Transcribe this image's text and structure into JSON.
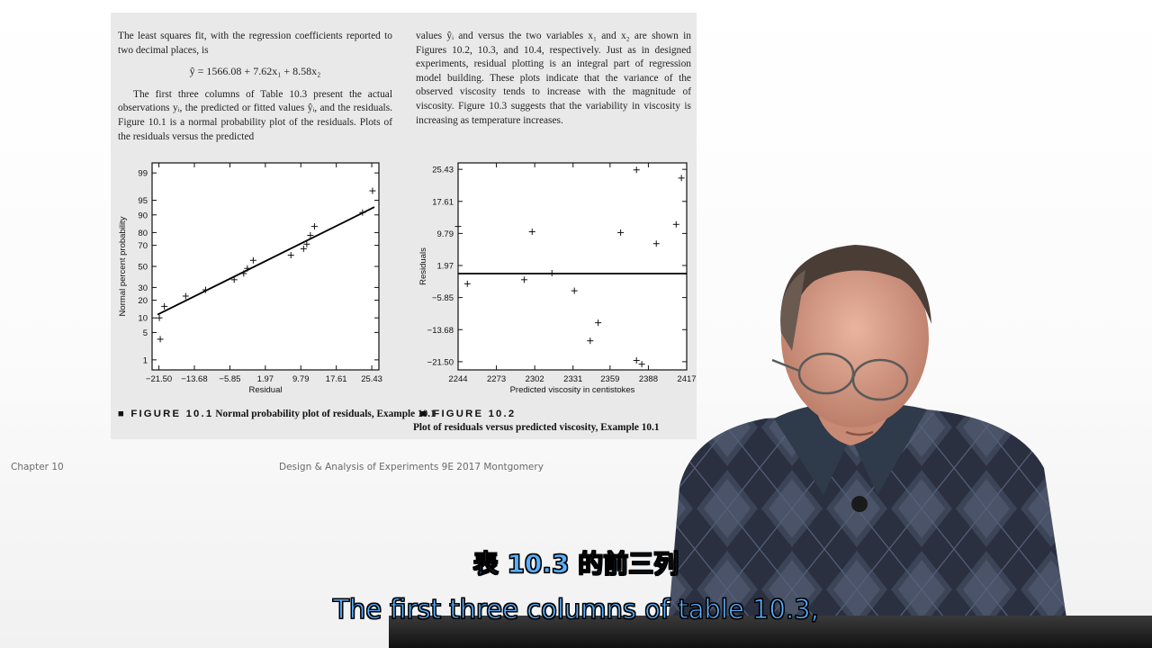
{
  "slide": {
    "left_column": {
      "para1": "The least squares fit, with the regression coefficients reported to two decimal places, is",
      "equation": "ŷ = 1566.08 + 7.62x₁ + 8.58x₂",
      "para2": "The first three columns of Table 10.3 present the actual observations yᵢ, the predicted or fitted values ŷᵢ, and the residuals. Figure 10.1 is a normal probability plot of the residuals. Plots of the residuals versus the predicted"
    },
    "right_column": {
      "para1": "values ŷᵢ and versus the two variables x₁ and x₂ are shown in Figures 10.2, 10.3, and 10.4, respectively. Just as in designed experiments, residual plotting is an integral part of regression model building. These plots indicate that the variance of the observed viscosity tends to increase with the magnitude of viscosity. Figure 10.3 suggests that the variability in viscosity is increasing as temperature increases."
    },
    "figure1": {
      "label": "■ FIGURE 10.1",
      "caption": "Normal probability plot of residuals, Example 10.1"
    },
    "figure2": {
      "label": "■ FIGURE 10.2",
      "caption": "Plot of residuals versus predicted viscosity, Example 10.1"
    }
  },
  "chart_data": [
    {
      "type": "scatter",
      "xlabel": "Residual",
      "ylabel": "Normal percent probability",
      "x_ticks": [
        "−21.50",
        "−13.68",
        "−5.85",
        "1.97",
        "9.79",
        "17.61",
        "25.43"
      ],
      "y_ticks": [
        "1",
        "5",
        "10",
        "20",
        "30",
        "50",
        "70",
        "80",
        "90",
        "95",
        "99"
      ],
      "xlim": [
        -23,
        27
      ],
      "y_scale": "normal-probability",
      "marker": "+",
      "points": [
        {
          "x": -21.2,
          "y": 3.5
        },
        {
          "x": -21.4,
          "y": 10
        },
        {
          "x": -20.3,
          "y": 16
        },
        {
          "x": -15.6,
          "y": 23
        },
        {
          "x": -11.2,
          "y": 28
        },
        {
          "x": -4.9,
          "y": 37
        },
        {
          "x": -2.8,
          "y": 43
        },
        {
          "x": -2.0,
          "y": 48
        },
        {
          "x": -0.7,
          "y": 56
        },
        {
          "x": 7.6,
          "y": 61
        },
        {
          "x": 10.4,
          "y": 67
        },
        {
          "x": 11.1,
          "y": 71
        },
        {
          "x": 11.9,
          "y": 78
        },
        {
          "x": 12.8,
          "y": 84
        },
        {
          "x": 23.4,
          "y": 91
        },
        {
          "x": 25.6,
          "y": 97
        }
      ],
      "fit_line": [
        {
          "x": -21.8,
          "y": 11.5
        },
        {
          "x": 26.0,
          "y": 93
        }
      ]
    },
    {
      "type": "scatter",
      "xlabel": "Predicted viscosity in centistokes",
      "ylabel": "Residuals",
      "x_ticks": [
        "2244",
        "2273",
        "2302",
        "2331",
        "2359",
        "2388",
        "2417"
      ],
      "y_ticks": [
        "25.43",
        "17.61",
        "9.79",
        "1.97",
        "−5.85",
        "−13.68",
        "−21.50"
      ],
      "xlim": [
        2244,
        2417
      ],
      "ylim": [
        -23.5,
        27
      ],
      "marker": "+",
      "reference_line_y": 0,
      "points": [
        {
          "x": 2244,
          "y": 11.5
        },
        {
          "x": 2251,
          "y": -2.5
        },
        {
          "x": 2294,
          "y": -1.5
        },
        {
          "x": 2300,
          "y": 10.2
        },
        {
          "x": 2315,
          "y": 0.1
        },
        {
          "x": 2332,
          "y": -4.2
        },
        {
          "x": 2344,
          "y": -16.4
        },
        {
          "x": 2350,
          "y": -12.0
        },
        {
          "x": 2367,
          "y": 10.0
        },
        {
          "x": 2379,
          "y": 25.3
        },
        {
          "x": 2379,
          "y": -21.2
        },
        {
          "x": 2383,
          "y": -22.1
        },
        {
          "x": 2394,
          "y": 7.3
        },
        {
          "x": 2409,
          "y": 12.0
        },
        {
          "x": 2413,
          "y": 23.3
        }
      ]
    }
  ],
  "footer": {
    "chapter": "Chapter 10",
    "title": "Design & Analysis of Experiments 9E 2017 Montgomery"
  },
  "subtitles": {
    "zh": "表 10.3 的前三列",
    "en": "The first three columns of table 10.3,"
  },
  "colors": {
    "subtitle_fill": "#5ab0ff",
    "page_background": "#e9e9e9"
  }
}
